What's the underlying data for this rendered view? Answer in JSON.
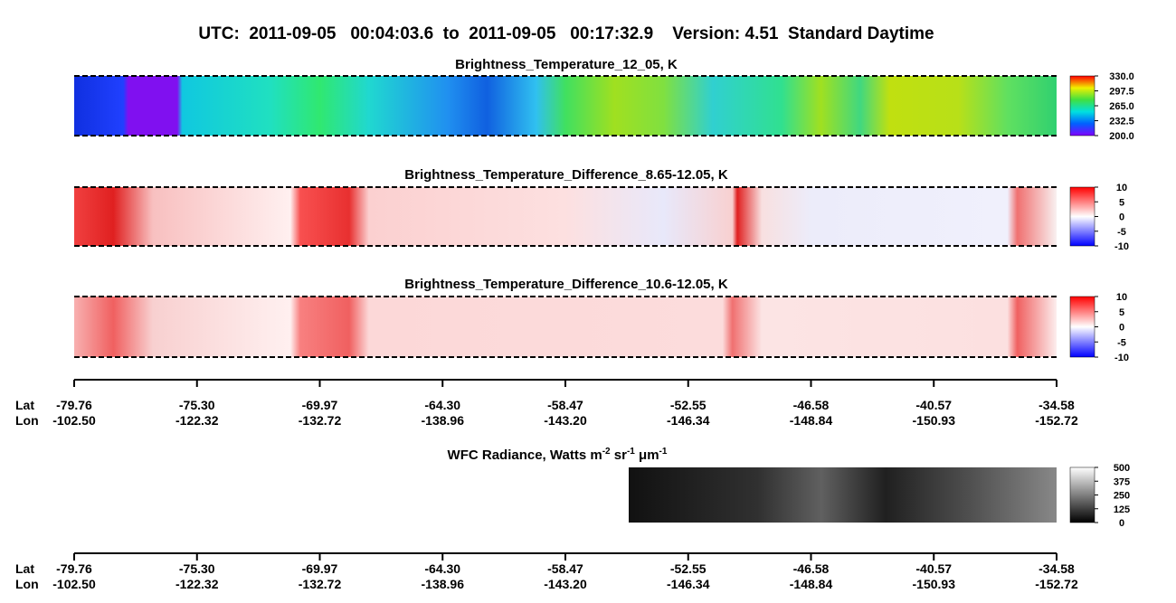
{
  "header": {
    "title": "UTC:  2011-09-05   00:04:03.6  to  2011-09-05   00:17:32.9    Version: 4.51  Standard Daytime"
  },
  "panels": [
    {
      "title": "Brightness_Temperature_12_05, K",
      "colorbar_ticks": [
        "330.0",
        "297.5",
        "265.0",
        "232.5",
        "200.0"
      ]
    },
    {
      "title": "Brightness_Temperature_Difference_8.65-12.05, K",
      "colorbar_ticks": [
        "10",
        "5",
        "0",
        "-5",
        "-10"
      ]
    },
    {
      "title": "Brightness_Temperature_Difference_10.6-12.05, K",
      "colorbar_ticks": [
        "10",
        "5",
        "0",
        "-5",
        "-10"
      ]
    },
    {
      "title_parts": [
        "WFC Radiance, Watts m",
        "-2",
        " sr",
        "-1",
        " μm",
        "-1"
      ],
      "colorbar_ticks": [
        "500",
        "375",
        "250",
        "125",
        "0"
      ]
    }
  ],
  "axis": {
    "lat_label": "Lat",
    "lon_label": "Lon",
    "lat": [
      "-79.76",
      "-75.30",
      "-69.97",
      "-64.30",
      "-58.47",
      "-52.55",
      "-46.58",
      "-40.57",
      "-34.58"
    ],
    "lon": [
      "-102.50",
      "-122.32",
      "-132.72",
      "-138.96",
      "-143.20",
      "-146.34",
      "-148.84",
      "-150.93",
      "-152.72"
    ]
  }
}
